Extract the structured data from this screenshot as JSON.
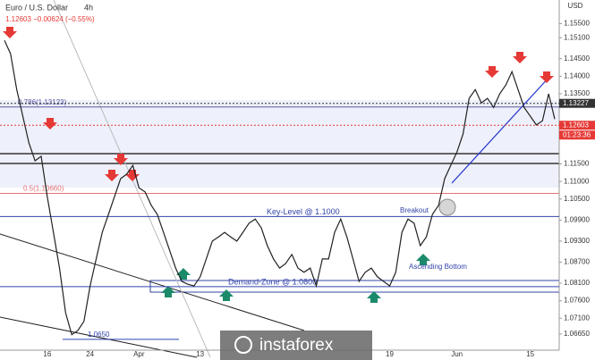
{
  "chart_data": {
    "type": "line",
    "title": "Euro / U.S. Dollar",
    "interval": "4h",
    "subtitle": "1.12603 −0.00624 (−0.55%)",
    "currency": "USD",
    "watermark": "instaforex",
    "color": "#222222",
    "categories": [
      null,
      null,
      null,
      null,
      null,
      null,
      null,
      "16",
      null,
      null,
      null,
      null,
      null,
      null,
      "24",
      null,
      null,
      null,
      null,
      null,
      null,
      null,
      "Apr",
      null,
      null,
      null,
      null,
      null,
      null,
      null,
      null,
      null,
      "13",
      null,
      null,
      null,
      null,
      null,
      null,
      null,
      null,
      null,
      null,
      null,
      null,
      null,
      null,
      null,
      null,
      null,
      null,
      null,
      null,
      null,
      null,
      null,
      null,
      null,
      null,
      null,
      null,
      null,
      null,
      "19",
      null,
      null,
      null,
      null,
      null,
      null,
      null,
      null,
      null,
      null,
      "Jun",
      null,
      null,
      null,
      null,
      null,
      null,
      null,
      null,
      null,
      null,
      null,
      "15",
      null,
      null,
      null,
      null
    ],
    "values": [
      1.1502,
      1.1464,
      1.1362,
      1.1286,
      1.121,
      1.1159,
      1.1172,
      1.1057,
      1.0955,
      1.0853,
      1.0726,
      1.0663,
      1.0675,
      1.0701,
      1.0802,
      1.0879,
      1.0955,
      1.1006,
      1.1057,
      1.1108,
      1.1121,
      1.1146,
      1.1082,
      1.107,
      1.1032,
      1.1006,
      1.0955,
      1.0904,
      1.0853,
      1.0815,
      1.0807,
      1.0802,
      1.0828,
      1.0879,
      1.093,
      1.0942,
      1.0955,
      1.0942,
      1.093,
      1.0955,
      1.0981,
      1.0993,
      1.0968,
      1.0917,
      1.0879,
      1.0853,
      1.0866,
      1.0892,
      1.0853,
      1.0841,
      1.0853,
      1.0802,
      1.0879,
      1.0879,
      1.0955,
      1.0993,
      1.0942,
      1.0879,
      1.0815,
      1.0841,
      1.0853,
      1.0828,
      1.0815,
      1.0802,
      1.0841,
      1.0955,
      1.0993,
      1.0981,
      1.0917,
      1.0942,
      1.1006,
      1.1032,
      1.1108,
      1.1146,
      1.1184,
      1.1235,
      1.1337,
      1.1362,
      1.1324,
      1.1337,
      1.1311,
      1.135,
      1.1375,
      1.1413,
      1.1362,
      1.1311,
      1.1286,
      1.1261,
      1.1273,
      1.135,
      1.1278
    ],
    "ylim": [
      1.0619,
      1.1597
    ],
    "yticks": [
      {
        "value": 1.155,
        "label": "1.15500"
      },
      {
        "value": 1.151,
        "label": "1.15100"
      },
      {
        "value": 1.145,
        "label": "1.14500"
      },
      {
        "value": 1.14,
        "label": "1.14000"
      },
      {
        "value": 1.135,
        "label": "1.13500"
      },
      {
        "value": 1.115,
        "label": "1.11500"
      },
      {
        "value": 1.11,
        "label": "1.11000"
      },
      {
        "value": 1.105,
        "label": "1.10500"
      },
      {
        "value": 1.099,
        "label": "1.09900"
      },
      {
        "value": 1.093,
        "label": "1.09300"
      },
      {
        "value": 1.087,
        "label": "1.08700"
      },
      {
        "value": 1.081,
        "label": "1.08100"
      },
      {
        "value": 1.076,
        "label": "1.07600"
      },
      {
        "value": 1.071,
        "label": "1.07100"
      },
      {
        "value": 1.0665,
        "label": "1.06650"
      }
    ],
    "price_tags": [
      {
        "value": 1.13227,
        "label": "1.13227",
        "color": "#333333"
      },
      {
        "value": 1.12603,
        "label": "1.12603",
        "color": "#e53935"
      }
    ],
    "countdown": "01:23:36",
    "levels": [
      {
        "value": 1.1,
        "label": "Key-Level @ 1.1000",
        "color": "#3344aa"
      },
      {
        "value": 1.08,
        "label": "Demand-Zone @ 1.0800",
        "color": "#3344aa"
      },
      {
        "value": 1.13123,
        "label": "0.786(1.13123)",
        "color": "#5a5aa0"
      },
      {
        "value": 1.1066,
        "label": "0.5(1.10660)",
        "color": "#e57373"
      },
      {
        "value": 1.065,
        "label": "1.0650",
        "color": "#3344aa"
      }
    ],
    "annotations": [
      "Breakout",
      "Ascending Bottom"
    ]
  }
}
